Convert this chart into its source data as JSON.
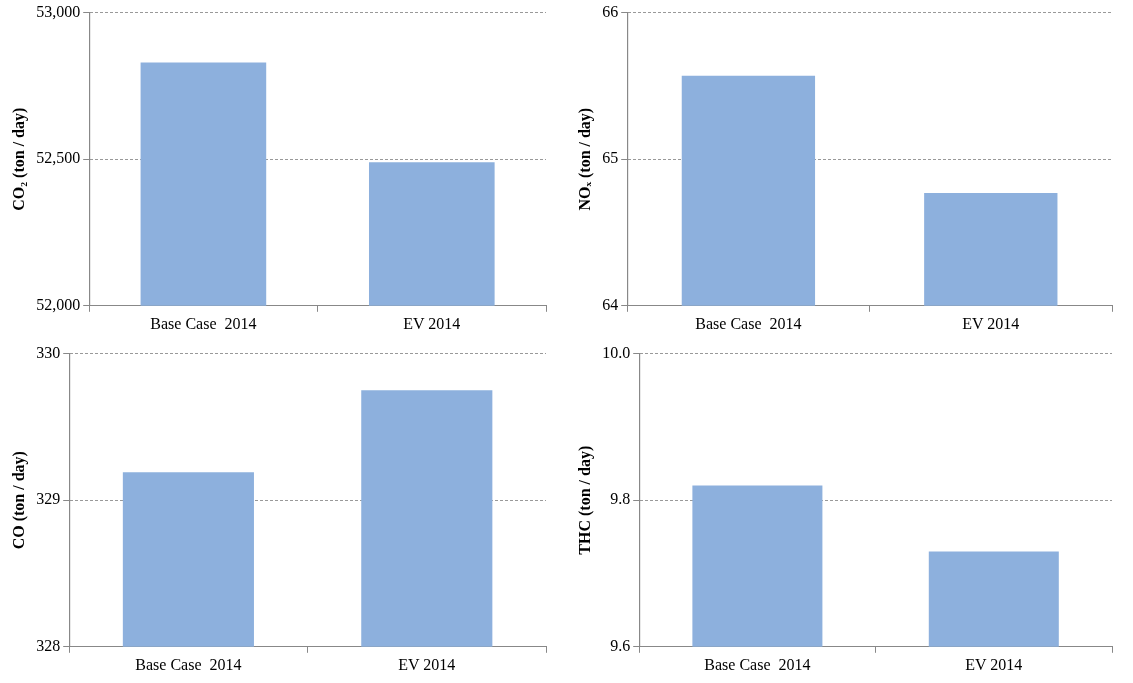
{
  "chart_data": [
    {
      "type": "bar",
      "ylabel": "CO₂ (ton / day)",
      "categories": [
        "Base Case  2014",
        "EV 2014"
      ],
      "values": [
        52830,
        52490
      ],
      "color": "#8db0dd",
      "ylim": [
        52000,
        53000
      ],
      "yticks": [
        {
          "value": 52000,
          "label": "52,000"
        },
        {
          "value": 52500,
          "label": "52,500"
        },
        {
          "value": 53000,
          "label": "53,000"
        }
      ],
      "grid": "y"
    },
    {
      "type": "bar",
      "ylabel": "NOₓ (ton / day)",
      "categories": [
        "Base Case  2014",
        "EV 2014"
      ],
      "values": [
        65.57,
        64.77
      ],
      "color": "#8db0dd",
      "ylim": [
        64,
        66
      ],
      "yticks": [
        64,
        65,
        66
      ],
      "grid": "y"
    },
    {
      "type": "bar",
      "ylabel": "CO (ton / day)",
      "categories": [
        "Base Case  2014",
        "EV 2014"
      ],
      "values": [
        329.19,
        329.75
      ],
      "color": "#8db0dd",
      "ylim": [
        328,
        330
      ],
      "yticks": [
        328,
        329,
        330
      ],
      "grid": "y"
    },
    {
      "type": "bar",
      "ylabel": "THC (ton / day)",
      "categories": [
        "Base Case  2014",
        "EV 2014"
      ],
      "values": [
        9.82,
        9.73
      ],
      "color": "#8db0dd",
      "ylim": [
        9.6,
        10.0
      ],
      "yticks": [
        9.6,
        9.8,
        {
          "value": 10.0,
          "label": "10.0"
        }
      ],
      "grid": "y"
    }
  ]
}
